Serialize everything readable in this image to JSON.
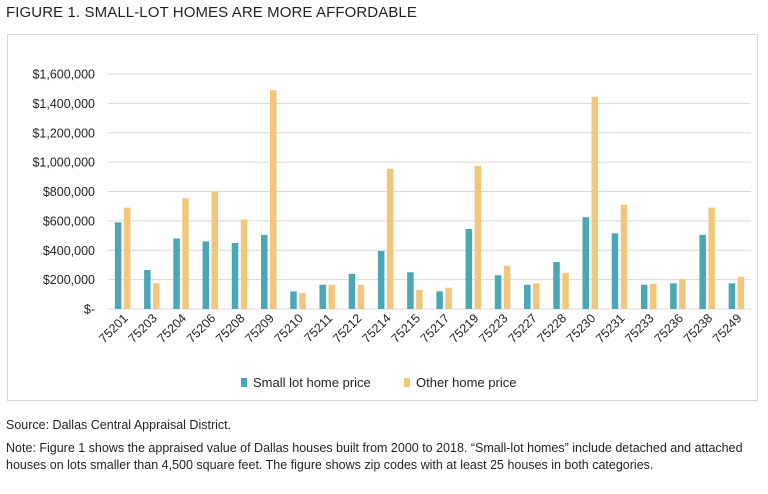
{
  "figure_title": "FIGURE 1. SMALL-LOT HOMES ARE MORE AFFORDABLE",
  "source": "Source: Dallas Central Appraisal District.",
  "note": "Note: Figure 1 shows the appraised value of Dallas houses built from 2000 to 2018. “Small-lot homes” include detached and attached houses on lots smaller than 4,500 square feet. The figure shows zip codes with at least 25 houses in both categories.",
  "colors": {
    "small": "#4aa7b5",
    "other": "#f2c77d",
    "grid": "#d9d9d9"
  },
  "chart_data": {
    "type": "bar",
    "title": "",
    "xlabel": "",
    "ylabel": "",
    "ylim": [
      0,
      1600000
    ],
    "yticks": [
      0,
      200000,
      400000,
      600000,
      800000,
      1000000,
      1200000,
      1400000,
      1600000
    ],
    "ytick_labels": [
      "$-",
      "$200,000",
      "$400,000",
      "$600,000",
      "$800,000",
      "$1,000,000",
      "$1,200,000",
      "$1,400,000",
      "$1,600,000"
    ],
    "grid": true,
    "legend_position": "bottom",
    "categories": [
      "75201",
      "75203",
      "75204",
      "75206",
      "75208",
      "75209",
      "75210",
      "75211",
      "75212",
      "75214",
      "75215",
      "75217",
      "75219",
      "75223",
      "75227",
      "75228",
      "75230",
      "75231",
      "75233",
      "75236",
      "75238",
      "75249"
    ],
    "series": [
      {
        "name": "Small lot home price",
        "color": "#4aa7b5",
        "values": [
          590000,
          265000,
          480000,
          460000,
          450000,
          505000,
          120000,
          165000,
          240000,
          395000,
          250000,
          120000,
          545000,
          230000,
          165000,
          320000,
          625000,
          515000,
          165000,
          175000,
          505000,
          175000
        ]
      },
      {
        "name": "Other home price",
        "color": "#f2c77d",
        "values": [
          690000,
          175000,
          755000,
          800000,
          610000,
          1490000,
          110000,
          165000,
          165000,
          955000,
          130000,
          145000,
          975000,
          295000,
          175000,
          245000,
          1445000,
          710000,
          170000,
          205000,
          690000,
          220000
        ]
      }
    ]
  }
}
